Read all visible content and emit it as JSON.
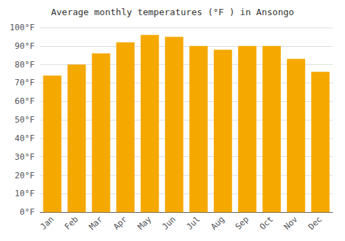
{
  "chart_data": {
    "type": "bar",
    "title": "Average monthly temperatures (°F ) in Ansongo",
    "categories": [
      "Jan",
      "Feb",
      "Mar",
      "Apr",
      "May",
      "Jun",
      "Jul",
      "Aug",
      "Sep",
      "Oct",
      "Nov",
      "Dec"
    ],
    "values": [
      74,
      80,
      86,
      92,
      96,
      95,
      90,
      88,
      90,
      90,
      83,
      76
    ],
    "color": "#F5A800",
    "ylim": [
      0,
      100
    ],
    "yticks": [
      {
        "value": 0,
        "label": "0°F"
      },
      {
        "value": 10,
        "label": "10°F"
      },
      {
        "value": 20,
        "label": "20°F"
      },
      {
        "value": 30,
        "label": "30°F"
      },
      {
        "value": 40,
        "label": "40°F"
      },
      {
        "value": 50,
        "label": "50°F"
      },
      {
        "value": 60,
        "label": "60°F"
      },
      {
        "value": 70,
        "label": "70°F"
      },
      {
        "value": 80,
        "label": "80°F"
      },
      {
        "value": 90,
        "label": "90°F"
      },
      {
        "value": 100,
        "label": "100°F"
      }
    ],
    "grid": true
  }
}
